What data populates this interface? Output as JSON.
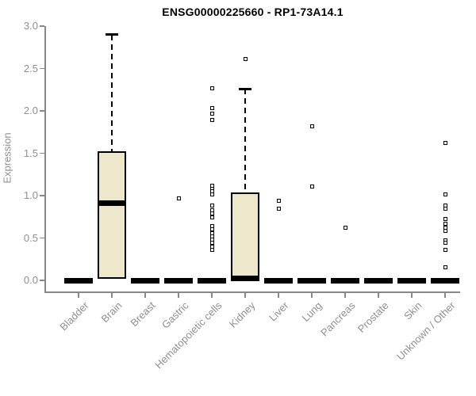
{
  "chart_data": {
    "type": "boxplot",
    "title": "ENSG00000225660 - RP1-73A14.1",
    "xlabel": "",
    "ylabel": "Expression",
    "ylim": [
      0,
      3
    ],
    "grid": false,
    "legend": "none",
    "yticks": [
      0,
      0.5,
      1.0,
      1.5,
      2.0,
      2.5,
      3.0
    ],
    "ytick_labels": [
      "0.0",
      "0.5",
      "1.0",
      "1.5",
      "2.0",
      "2.5",
      "3.0"
    ],
    "categories": [
      "Bladder",
      "Brain",
      "Breast",
      "Gastric",
      "Hematopoietic cells",
      "Kidney",
      "Liver",
      "Lung",
      "Pancreas",
      "Prostate",
      "Skin",
      "Unknown / Other"
    ],
    "boxes": [
      {
        "category": "Bladder",
        "low": 0,
        "q1": 0,
        "median": 0,
        "q3": 0,
        "high": 0,
        "outliers": []
      },
      {
        "category": "Brain",
        "low": 0.02,
        "q1": 0.02,
        "median": 0.91,
        "q3": 1.52,
        "high": 2.9,
        "outliers": []
      },
      {
        "category": "Breast",
        "low": 0,
        "q1": 0,
        "median": 0,
        "q3": 0,
        "high": 0,
        "outliers": []
      },
      {
        "category": "Gastric",
        "low": 0,
        "q1": 0,
        "median": 0,
        "q3": 0,
        "high": 0,
        "outliers": [
          0.97
        ]
      },
      {
        "category": "Hematopoietic cells",
        "low": 0,
        "q1": 0,
        "median": 0,
        "q3": 0,
        "high": 0,
        "outliers": [
          2.27,
          2.03,
          1.97,
          1.89,
          1.12,
          1.08,
          1.05,
          1.01,
          0.88,
          0.83,
          0.79,
          0.74,
          0.64,
          0.6,
          0.56,
          0.52,
          0.48,
          0.44,
          0.4,
          0.36
        ]
      },
      {
        "category": "Kidney",
        "low": 0.02,
        "q1": 0.02,
        "median": 0.02,
        "q3": 1.04,
        "high": 2.26,
        "outliers": [
          2.61
        ]
      },
      {
        "category": "Liver",
        "low": 0,
        "q1": 0,
        "median": 0,
        "q3": 0,
        "high": 0,
        "outliers": [
          0.94,
          0.85
        ]
      },
      {
        "category": "Lung",
        "low": 0,
        "q1": 0,
        "median": 0,
        "q3": 0,
        "high": 0,
        "outliers": [
          1.82,
          1.11
        ]
      },
      {
        "category": "Pancreas",
        "low": 0,
        "q1": 0,
        "median": 0,
        "q3": 0,
        "high": 0,
        "outliers": [
          0.62
        ]
      },
      {
        "category": "Prostate",
        "low": 0,
        "q1": 0,
        "median": 0,
        "q3": 0,
        "high": 0,
        "outliers": []
      },
      {
        "category": "Skin",
        "low": 0,
        "q1": 0,
        "median": 0,
        "q3": 0,
        "high": 0,
        "outliers": []
      },
      {
        "category": "Unknown / Other",
        "low": 0,
        "q1": 0,
        "median": 0,
        "q3": 0,
        "high": 0,
        "outliers": [
          1.62,
          1.01,
          0.88,
          0.85,
          0.72,
          0.67,
          0.62,
          0.58,
          0.47,
          0.44,
          0.36,
          0.15
        ]
      }
    ],
    "colors": {
      "box_fill": "#EDE7CC",
      "box_border": "#000000",
      "median": "#000000",
      "axis": "#888888",
      "axis_text": "#8f8f8f",
      "title_text": "#000000",
      "outlier_fill": "#ffffff",
      "outlier_border": "#000000"
    }
  }
}
